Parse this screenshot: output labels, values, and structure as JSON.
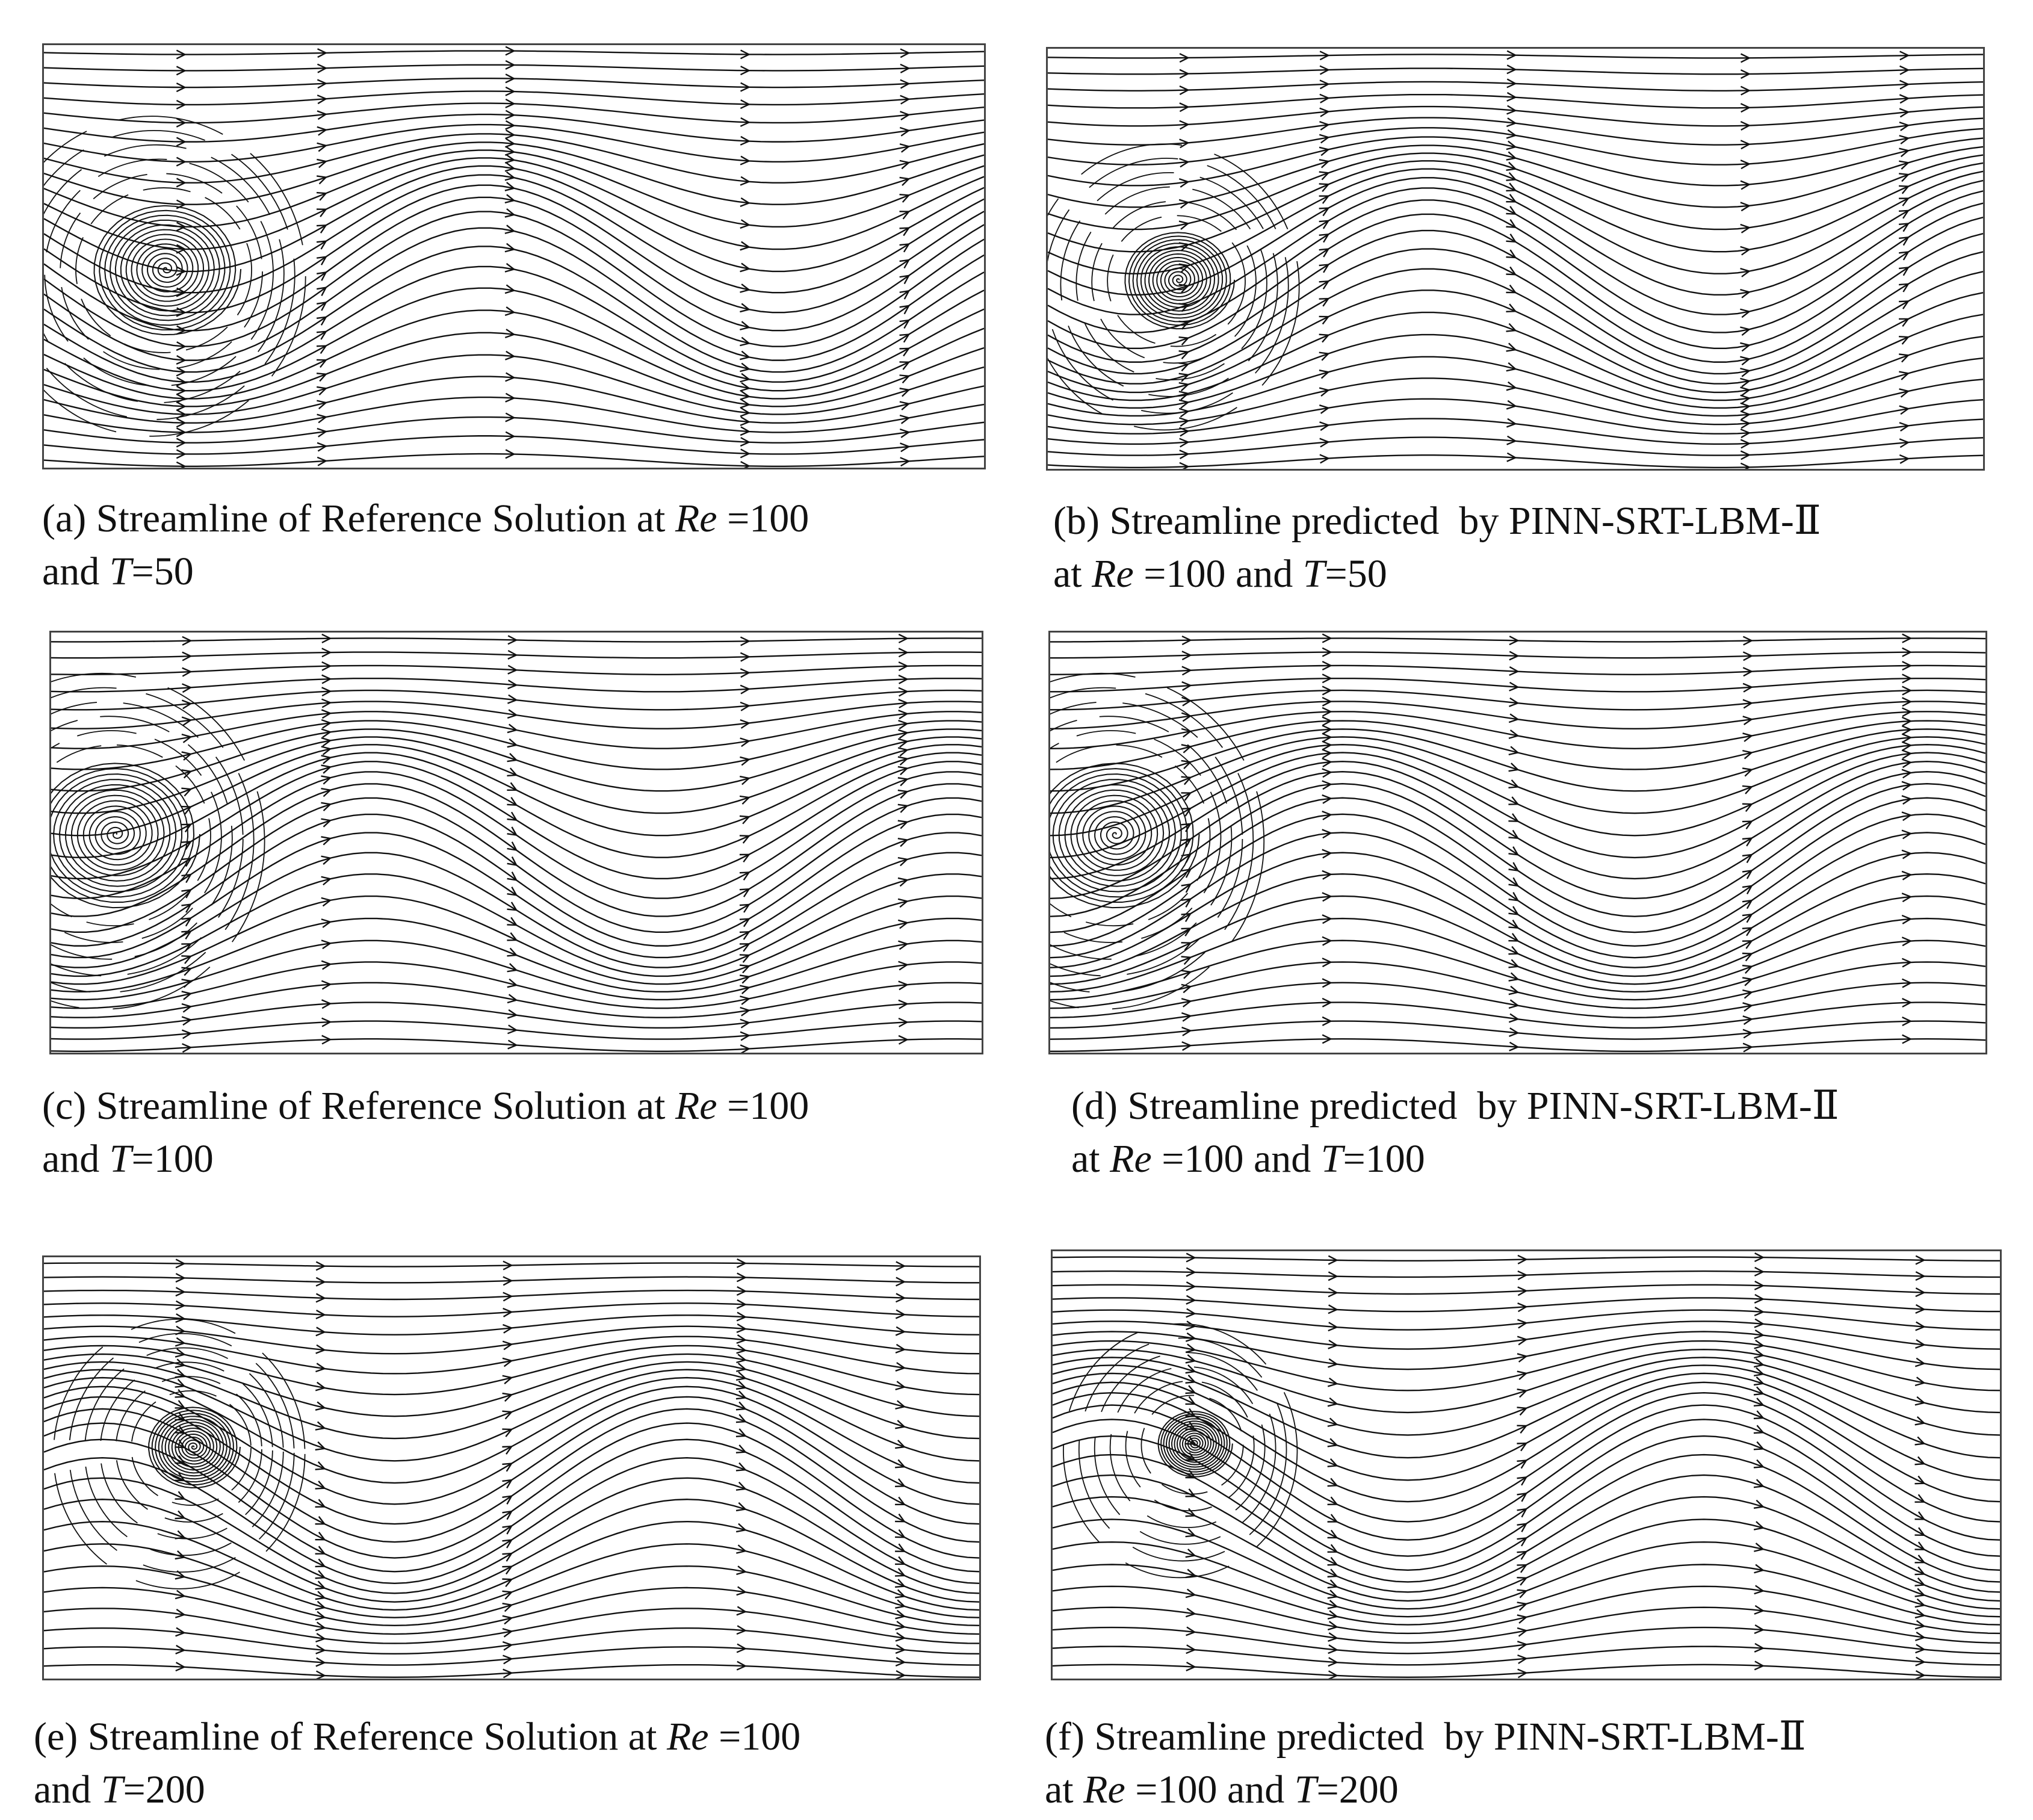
{
  "figure": {
    "panels": [
      {
        "id": "a",
        "source": "reference",
        "caption_prefix": "(a) Streamline of Reference Solution at ",
        "re_label": "Re",
        "re_value": " =100",
        "line2_prefix": "and ",
        "t_label": "T",
        "t_value": "=50"
      },
      {
        "id": "b",
        "source": "predicted",
        "caption_prefix": "(b) Streamline predicted  by PINN-SRT-LBM-Ⅱ",
        "line2_prefix": "at ",
        "re_label": "Re",
        "re_value": " =100 and ",
        "t_label": "T",
        "t_value": "=50"
      },
      {
        "id": "c",
        "source": "reference",
        "caption_prefix": "(c) Streamline of Reference Solution at ",
        "re_label": "Re",
        "re_value": " =100",
        "line2_prefix": "and ",
        "t_label": "T",
        "t_value": "=100"
      },
      {
        "id": "d",
        "source": "predicted",
        "caption_prefix": "(d) Streamline predicted  by PINN-SRT-LBM-Ⅱ",
        "line2_prefix": "at ",
        "re_label": "Re",
        "re_value": " =100 and ",
        "t_label": "T",
        "t_value": "=100"
      },
      {
        "id": "e",
        "source": "reference",
        "caption_prefix": "(e) Streamline of Reference Solution at ",
        "re_label": "Re",
        "re_value": " =100",
        "line2_prefix": "and ",
        "t_label": "T",
        "t_value": "=200"
      },
      {
        "id": "f",
        "source": "predicted",
        "caption_prefix": "(f) Streamline predicted  by PINN-SRT-LBM-Ⅱ",
        "line2_prefix": "at ",
        "re_label": "Re",
        "re_value": " =100 and ",
        "t_label": "T",
        "t_value": "=200"
      }
    ]
  },
  "style": {
    "stroke_color": "#111111",
    "frame_color": "#444444"
  }
}
